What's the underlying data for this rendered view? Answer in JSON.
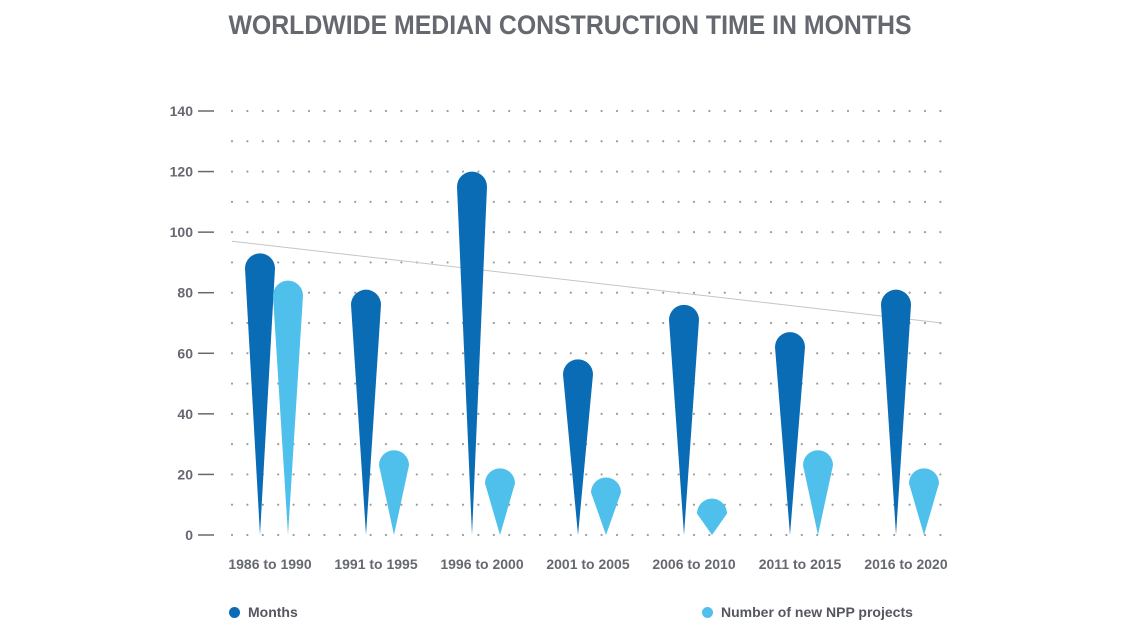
{
  "chart_data": {
    "type": "bar",
    "title": "WORLDWIDE MEDIAN CONSTRUCTION TIME IN MONTHS",
    "categories": [
      "1986 to 1990",
      "1991 to 1995",
      "1996 to 2000",
      "2001 to 2005",
      "2006 to 2010",
      "2011 to 2015",
      "2016 to 2020"
    ],
    "series": [
      {
        "name": "Months",
        "values": [
          93,
          81,
          120,
          58,
          76,
          67,
          81
        ],
        "color": "#0a6cb5"
      },
      {
        "name": "Number of new NPP projects",
        "values": [
          84,
          28,
          22,
          19,
          12,
          28,
          22
        ],
        "color": "#4fc0ec"
      }
    ],
    "trendline": {
      "from": 97,
      "to": 70
    },
    "yticks": [
      0,
      20,
      40,
      60,
      80,
      100,
      120,
      140
    ],
    "ylim": [
      0,
      140
    ],
    "xlabel": "",
    "ylabel": "",
    "grid": true,
    "legend_position": "bottom"
  }
}
